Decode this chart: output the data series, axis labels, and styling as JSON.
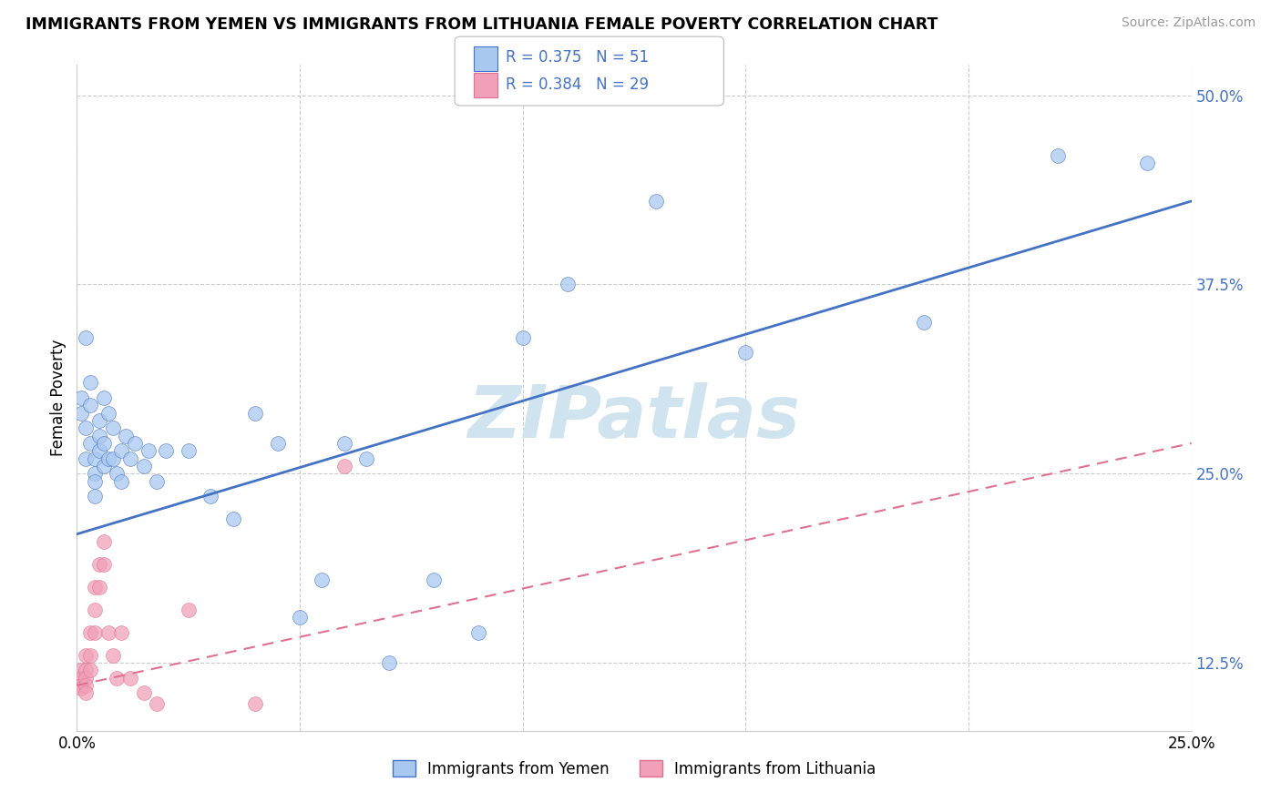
{
  "title": "IMMIGRANTS FROM YEMEN VS IMMIGRANTS FROM LITHUANIA FEMALE POVERTY CORRELATION CHART",
  "source": "Source: ZipAtlas.com",
  "ylabel": "Female Poverty",
  "xlim": [
    0.0,
    0.25
  ],
  "ylim": [
    0.08,
    0.52
  ],
  "xtick_vals": [
    0.0,
    0.05,
    0.1,
    0.15,
    0.2,
    0.25
  ],
  "xtick_labels": [
    "0.0%",
    "",
    "",
    "",
    "",
    "25.0%"
  ],
  "yticks_right": [
    0.5,
    0.375,
    0.25,
    0.125
  ],
  "ytick_labels_right": [
    "50.0%",
    "37.5%",
    "25.0%",
    "12.5%"
  ],
  "R_yemen": 0.375,
  "N_yemen": 51,
  "R_lithuania": 0.384,
  "N_lithuania": 29,
  "color_yemen": "#A8C8F0",
  "color_lithuania": "#F0A0B8",
  "color_line_yemen": "#4472C4",
  "color_line_lithuania": "#E07090",
  "legend_label_yemen": "Immigrants from Yemen",
  "legend_label_lithuania": "Immigrants from Lithuania",
  "line_yemen_x0": 0.0,
  "line_yemen_y0": 0.21,
  "line_yemen_x1": 0.25,
  "line_yemen_y1": 0.43,
  "line_lit_x0": 0.0,
  "line_lit_y0": 0.11,
  "line_lit_x1": 0.25,
  "line_lit_y1": 0.27,
  "yemen_x": [
    0.001,
    0.001,
    0.002,
    0.002,
    0.002,
    0.003,
    0.003,
    0.003,
    0.004,
    0.004,
    0.004,
    0.004,
    0.005,
    0.005,
    0.005,
    0.006,
    0.006,
    0.006,
    0.007,
    0.007,
    0.008,
    0.008,
    0.009,
    0.01,
    0.01,
    0.011,
    0.012,
    0.013,
    0.015,
    0.016,
    0.018,
    0.02,
    0.025,
    0.03,
    0.035,
    0.04,
    0.045,
    0.05,
    0.055,
    0.06,
    0.065,
    0.07,
    0.08,
    0.09,
    0.1,
    0.11,
    0.13,
    0.15,
    0.19,
    0.22,
    0.24
  ],
  "yemen_y": [
    0.3,
    0.29,
    0.34,
    0.28,
    0.26,
    0.31,
    0.295,
    0.27,
    0.26,
    0.25,
    0.245,
    0.235,
    0.285,
    0.275,
    0.265,
    0.3,
    0.27,
    0.255,
    0.29,
    0.26,
    0.28,
    0.26,
    0.25,
    0.265,
    0.245,
    0.275,
    0.26,
    0.27,
    0.255,
    0.265,
    0.245,
    0.265,
    0.265,
    0.235,
    0.22,
    0.29,
    0.27,
    0.155,
    0.18,
    0.27,
    0.26,
    0.125,
    0.18,
    0.145,
    0.34,
    0.375,
    0.43,
    0.33,
    0.35,
    0.46,
    0.455
  ],
  "lithuania_x": [
    0.001,
    0.001,
    0.001,
    0.001,
    0.002,
    0.002,
    0.002,
    0.002,
    0.002,
    0.003,
    0.003,
    0.003,
    0.004,
    0.004,
    0.004,
    0.005,
    0.005,
    0.006,
    0.006,
    0.007,
    0.008,
    0.009,
    0.01,
    0.012,
    0.015,
    0.018,
    0.025,
    0.04,
    0.06
  ],
  "lithuania_y": [
    0.12,
    0.115,
    0.11,
    0.108,
    0.13,
    0.12,
    0.115,
    0.11,
    0.105,
    0.145,
    0.13,
    0.12,
    0.175,
    0.16,
    0.145,
    0.19,
    0.175,
    0.205,
    0.19,
    0.145,
    0.13,
    0.115,
    0.145,
    0.115,
    0.105,
    0.098,
    0.16,
    0.098,
    0.255
  ],
  "watermark": "ZIPatlas",
  "watermark_color": "#D0E4F0"
}
